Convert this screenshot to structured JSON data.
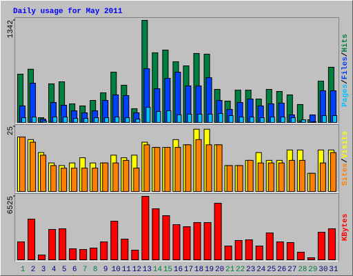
{
  "chart_data": {
    "type": "bar",
    "title": "Daily usage for May 2011",
    "categories": [
      "1",
      "2",
      "3",
      "4",
      "5",
      "6",
      "7",
      "8",
      "9",
      "10",
      "11",
      "12",
      "13",
      "14",
      "15",
      "16",
      "17",
      "18",
      "19",
      "20",
      "21",
      "22",
      "23",
      "24",
      "25",
      "26",
      "27",
      "28",
      "29",
      "30",
      "31"
    ],
    "category_colors": [
      "#008040",
      "#000080",
      "#000080",
      "#000080",
      "#000080",
      "#000080",
      "#008040",
      "#008040",
      "#000080",
      "#000080",
      "#000080",
      "#000080",
      "#000080",
      "#008040",
      "#008040",
      "#000080",
      "#000080",
      "#000080",
      "#000080",
      "#000080",
      "#008040",
      "#008040",
      "#000080",
      "#000080",
      "#000080",
      "#000080",
      "#000080",
      "#008040",
      "#008040",
      "#000080",
      "#000080"
    ],
    "separator": "/",
    "panels": [
      {
        "ylim": [
          0,
          1342
        ],
        "yticks": [
          1342
        ],
        "series": [
          {
            "name": "Hits",
            "color": "#008040",
            "values": [
              635,
              700,
              63,
              508,
              535,
              245,
              218,
              290,
              390,
              662,
              490,
              181,
              1342,
              916,
              952,
              798,
              744,
              907,
              898,
              435,
              281,
              426,
              426,
              308,
              435,
              408,
              363,
              236,
              36,
              544,
              726
            ]
          },
          {
            "name": "Files",
            "color": "#0040ff",
            "values": [
              218,
              517,
              45,
              263,
              227,
              154,
              127,
              154,
              290,
              363,
              354,
              127,
              707,
              444,
              580,
              662,
              481,
              481,
              590,
              290,
              172,
              263,
              308,
              218,
              245,
              254,
              100,
              18,
              100,
              417,
              417
            ]
          },
          {
            "name": "Pages",
            "color": "#00c0ff",
            "values": [
              63,
              72,
              18,
              72,
              72,
              54,
              54,
              63,
              63,
              72,
              63,
              45,
              200,
              145,
              154,
              100,
              109,
              109,
              109,
              118,
              90,
              72,
              72,
              63,
              72,
              72,
              63,
              36,
              9,
              90,
              91
            ]
          }
        ]
      },
      {
        "ylim": [
          0,
          25
        ],
        "yticks": [
          25
        ],
        "series": [
          {
            "name": "Visits",
            "color": "#ffff00",
            "values": [
              21,
              20,
              15,
              11,
              10,
              11,
              13,
              11,
              11,
              14,
              13,
              14,
              19,
              17,
              17,
              20,
              18,
              24,
              24,
              18,
              10,
              10,
              12,
              15,
              12,
              12,
              16,
              16,
              7,
              16,
              16
            ]
          },
          {
            "name": "Sites",
            "color": "#ff8000",
            "values": [
              21,
              19,
              14,
              10,
              9,
              9,
              9,
              9,
              11,
              11,
              12,
              9,
              18,
              17,
              17,
              17,
              18,
              20,
              18,
              18,
              10,
              10,
              12,
              11,
              11,
              11,
              12,
              12,
              7,
              11,
              15
            ]
          }
        ]
      },
      {
        "ylim": [
          0,
          6525
        ],
        "yticks": [
          6525
        ],
        "series": [
          {
            "name": "KBytes",
            "color": "#ff0000",
            "values": [
              1843,
              4183,
              496,
              3120,
              3190,
              1134,
              1063,
              1205,
              1843,
              3970,
              2127,
              993,
              6525,
              5247,
              4538,
              3616,
              3403,
              3829,
              3829,
              5814,
              1418,
              1985,
              2056,
              1418,
              2765,
              1843,
              1773,
              780,
              213,
              2836,
              3190
            ]
          }
        ]
      }
    ]
  }
}
